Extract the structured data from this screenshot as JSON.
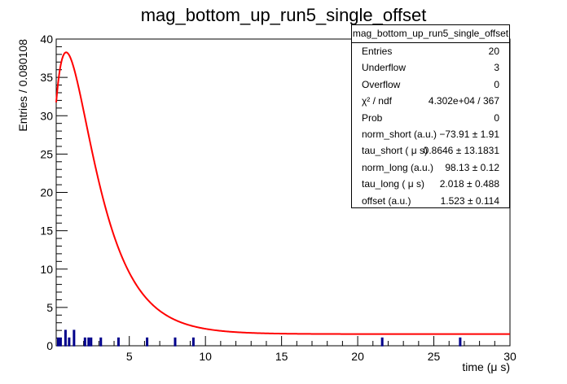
{
  "chart_data": {
    "type": "histogram_with_fit",
    "title": "mag_bottom_up_run5_single_offset",
    "xlabel": "time (μ s)",
    "ylabel": "Entries / 0.080108",
    "xlim": [
      0.2,
      30
    ],
    "ylim": [
      0,
      40
    ],
    "x_ticks": [
      5,
      10,
      15,
      20,
      25,
      30
    ],
    "y_ticks": [
      0,
      5,
      10,
      15,
      20,
      25,
      30,
      35,
      40
    ],
    "histogram": {
      "name": "mag_bottom_up_run5_single_offset",
      "color": "#00008b",
      "bin_width": 0.080108,
      "bins": [
        {
          "x": 0.33,
          "y": 1
        },
        {
          "x": 0.49,
          "y": 1
        },
        {
          "x": 0.81,
          "y": 2
        },
        {
          "x": 1.05,
          "y": 1
        },
        {
          "x": 1.37,
          "y": 2
        },
        {
          "x": 2.09,
          "y": 1
        },
        {
          "x": 2.33,
          "y": 1
        },
        {
          "x": 2.49,
          "y": 1
        },
        {
          "x": 3.13,
          "y": 1
        },
        {
          "x": 4.29,
          "y": 1
        },
        {
          "x": 6.17,
          "y": 1
        },
        {
          "x": 8.01,
          "y": 1
        },
        {
          "x": 9.21,
          "y": 1
        },
        {
          "x": 21.61,
          "y": 1
        },
        {
          "x": 26.73,
          "y": 1
        }
      ]
    },
    "fit": {
      "name": "fit function",
      "color": "#ff0000",
      "params": {
        "norm_short": -73.91,
        "tau_short": 0.8646,
        "norm_long": 98.13,
        "tau_long": 2.018,
        "offset": 1.523
      }
    },
    "stats_box": {
      "title": "mag_bottom_up_run5_single_offset",
      "rows": [
        {
          "label": "Entries",
          "value": "20"
        },
        {
          "label": "Underflow",
          "value": "3"
        },
        {
          "label": "Overflow",
          "value": "0"
        },
        {
          "label": "χ² / ndf",
          "value": "4.302e+04 / 367"
        },
        {
          "label": "Prob",
          "value": "0"
        },
        {
          "label": "norm_short (a.u.)",
          "value": "−73.91 ± 1.91"
        },
        {
          "label": "tau_short ( μ s)",
          "value": "0.8646 ± 13.1831"
        },
        {
          "label": "norm_long (a.u.)",
          "value": "98.13 ± 0.12"
        },
        {
          "label": "tau_long ( μ s)",
          "value": "2.018 ± 0.488"
        },
        {
          "label": "offset (a.u.)",
          "value": "1.523 ± 0.114"
        }
      ]
    }
  }
}
